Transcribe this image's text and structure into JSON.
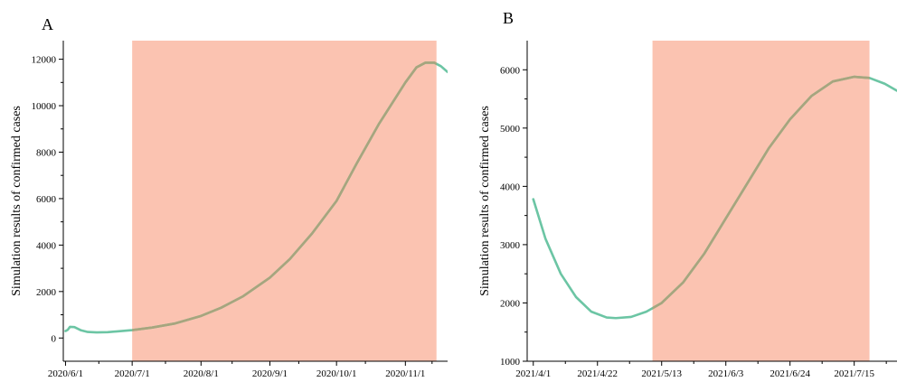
{
  "chart_data": [
    {
      "type": "line",
      "panel_label": "A",
      "title": "",
      "xlabel": "",
      "ylabel": "Simulation results of confirmed cases",
      "xlim": [
        "2020-05-31",
        "2020-11-20"
      ],
      "ylim": [
        -1000,
        12800
      ],
      "x_ticks": [
        "2020-06-01",
        "2020-07-01",
        "2020-08-01",
        "2020-09-01",
        "2020-10-01",
        "2020-11-01"
      ],
      "x_tick_labels": [
        "2020/6/1",
        "2020/7/1",
        "2020/8/1",
        "2020/9/1",
        "2020/10/1",
        "2020/11/1"
      ],
      "y_ticks": [
        0,
        2000,
        4000,
        6000,
        8000,
        10000,
        12000
      ],
      "y_tick_labels": [
        "0",
        "2000",
        "4000",
        "6000",
        "8000",
        "10000",
        "12000"
      ],
      "shaded_region": {
        "start": "2020-07-01",
        "end": "2020-11-15",
        "color": "#fbc3b1"
      },
      "grid": false,
      "legend": "none",
      "series": [
        {
          "color": "#6cc5a4",
          "highlight_color": "#a7a57e",
          "x": [
            "2020-06-01",
            "2020-06-02",
            "2020-06-03",
            "2020-06-05",
            "2020-06-08",
            "2020-06-11",
            "2020-06-15",
            "2020-06-20",
            "2020-06-25",
            "2020-07-01",
            "2020-07-10",
            "2020-07-20",
            "2020-08-01",
            "2020-08-10",
            "2020-08-20",
            "2020-09-01",
            "2020-09-10",
            "2020-09-20",
            "2020-10-01",
            "2020-10-10",
            "2020-10-20",
            "2020-11-01",
            "2020-11-06",
            "2020-11-10",
            "2020-11-14",
            "2020-11-17",
            "2020-11-20"
          ],
          "y": [
            300,
            350,
            480,
            470,
            330,
            260,
            240,
            250,
            290,
            340,
            450,
            620,
            950,
            1300,
            1800,
            2600,
            3400,
            4500,
            5900,
            7500,
            9200,
            11000,
            11650,
            11850,
            11850,
            11700,
            11450
          ]
        }
      ]
    },
    {
      "type": "line",
      "panel_label": "B",
      "title": "",
      "xlabel": "",
      "ylabel": "Simulation results of confirmed cases",
      "xlim": [
        "2021-03-30",
        "2021-07-29"
      ],
      "ylim": [
        1000,
        6500
      ],
      "x_ticks": [
        "2021-04-01",
        "2021-04-22",
        "2021-05-13",
        "2021-06-03",
        "2021-06-24",
        "2021-07-15"
      ],
      "x_tick_labels": [
        "2021/4/1",
        "2021/4/22",
        "2021/5/13",
        "2021/6/3",
        "2021/6/24",
        "2021/7/15"
      ],
      "y_ticks": [
        1000,
        2000,
        3000,
        4000,
        5000,
        6000
      ],
      "y_tick_labels": [
        "1000",
        "2000",
        "3000",
        "4000",
        "5000",
        "6000"
      ],
      "shaded_region": {
        "start": "2021-05-10",
        "end": "2021-07-20",
        "color": "#fbc3b1"
      },
      "grid": false,
      "legend": "none",
      "series": [
        {
          "color": "#6cc5a4",
          "highlight_color": "#a7a57e",
          "x": [
            "2021-04-01",
            "2021-04-05",
            "2021-04-10",
            "2021-04-15",
            "2021-04-20",
            "2021-04-25",
            "2021-04-28",
            "2021-05-03",
            "2021-05-08",
            "2021-05-13",
            "2021-05-20",
            "2021-05-27",
            "2021-06-03",
            "2021-06-10",
            "2021-06-17",
            "2021-06-24",
            "2021-07-01",
            "2021-07-08",
            "2021-07-15",
            "2021-07-20",
            "2021-07-25",
            "2021-07-29"
          ],
          "y": [
            3780,
            3100,
            2500,
            2100,
            1850,
            1750,
            1740,
            1760,
            1850,
            2000,
            2350,
            2850,
            3450,
            4050,
            4650,
            5150,
            5550,
            5800,
            5880,
            5860,
            5760,
            5640
          ]
        }
      ]
    }
  ]
}
